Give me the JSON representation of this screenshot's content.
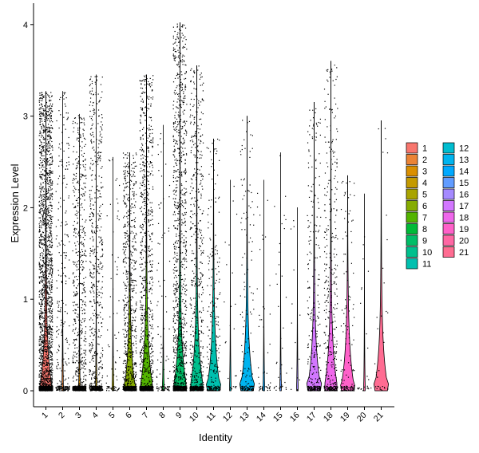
{
  "chart_data": {
    "type": "violin",
    "xlabel": "Identity",
    "ylabel": "Expression Level",
    "ylim": [
      -0.3,
      4.25
    ],
    "yticks": [
      0,
      1,
      2,
      3,
      4
    ],
    "categories": [
      "1",
      "2",
      "3",
      "4",
      "5",
      "6",
      "7",
      "8",
      "9",
      "10",
      "11",
      "12",
      "13",
      "14",
      "15",
      "16",
      "17",
      "18",
      "19",
      "20",
      "21"
    ],
    "legend_position": "right",
    "grid": false,
    "colors": [
      "#F8766D",
      "#EB8335",
      "#DA8F00",
      "#C49A00",
      "#A9A400",
      "#86AC00",
      "#53B400",
      "#00BA38",
      "#00BE67",
      "#00C08D",
      "#00C0AF",
      "#00BDD0",
      "#00B4EF",
      "#00A9FF",
      "#619CFF",
      "#A58AFF",
      "#D277FF",
      "#EF67EB",
      "#FF61C9",
      "#FF67A4",
      "#FF6C92"
    ],
    "max_values": [
      3.27,
      3.27,
      3.02,
      3.45,
      2.55,
      2.6,
      3.45,
      2.9,
      4.02,
      3.55,
      2.75,
      2.3,
      3.0,
      2.3,
      2.6,
      2.0,
      3.15,
      3.6,
      2.35,
      2.15,
      2.95
    ],
    "violin_max_widths": [
      0.4,
      0.05,
      0.05,
      0.05,
      0.05,
      0.35,
      0.42,
      0.05,
      0.44,
      0.44,
      0.44,
      0.05,
      0.44,
      0.05,
      0.05,
      0.05,
      0.44,
      0.44,
      0.44,
      0.05,
      0.44
    ],
    "point_counts": [
      2500,
      300,
      800,
      700,
      80,
      900,
      1000,
      100,
      1300,
      700,
      250,
      25,
      170,
      50,
      40,
      15,
      330,
      400,
      140,
      25,
      35
    ]
  }
}
